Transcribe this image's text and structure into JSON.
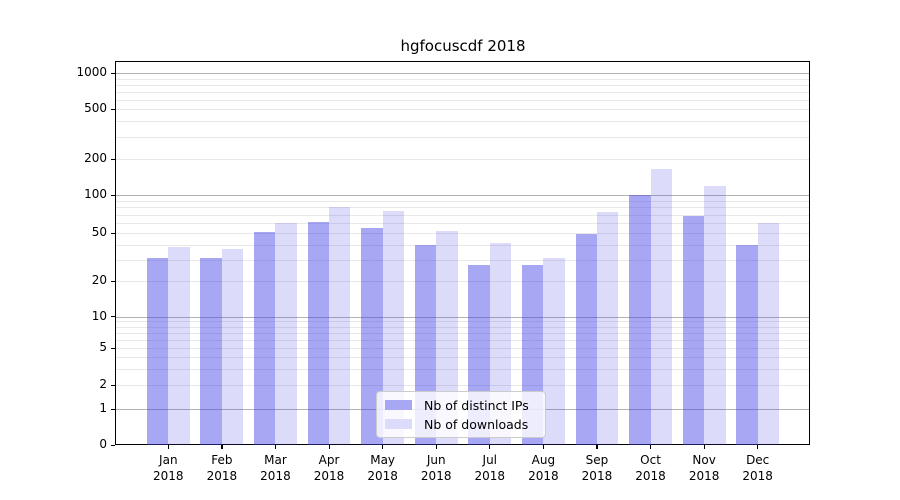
{
  "chart_data": {
    "type": "bar",
    "title": "hgfocuscdf 2018",
    "categories": [
      "Jan",
      "Feb",
      "Mar",
      "Apr",
      "May",
      "Jun",
      "Jul",
      "Aug",
      "Sep",
      "Oct",
      "Nov",
      "Dec"
    ],
    "year": "2018",
    "series": [
      {
        "name": "Nb of distinct IPs",
        "values": [
          31,
          31,
          51,
          61,
          55,
          40,
          27,
          27,
          49,
          100,
          68,
          40
        ],
        "base_color": "#3c3ce6",
        "alpha": 0.45,
        "legend_color": "#a7a7f3"
      },
      {
        "name": "Nb of downloads",
        "values": [
          38,
          37,
          60,
          80,
          75,
          52,
          41,
          31,
          74,
          166,
          120,
          60
        ],
        "base_color": "#3c3ce6",
        "alpha": 0.18,
        "legend_color": "#dcdcfa"
      }
    ],
    "yticks": [
      0,
      1,
      2,
      5,
      10,
      20,
      50,
      100,
      200,
      500,
      1000
    ],
    "yscale": "symlog",
    "ylim": [
      0,
      1000
    ],
    "xlabel": "",
    "ylabel": "",
    "grid": true,
    "legend_position": "lower-center",
    "colors": {
      "major_gridline": "#b2b2b2",
      "minor_gridline": "#e8e8e8",
      "spine": "#000000"
    }
  }
}
